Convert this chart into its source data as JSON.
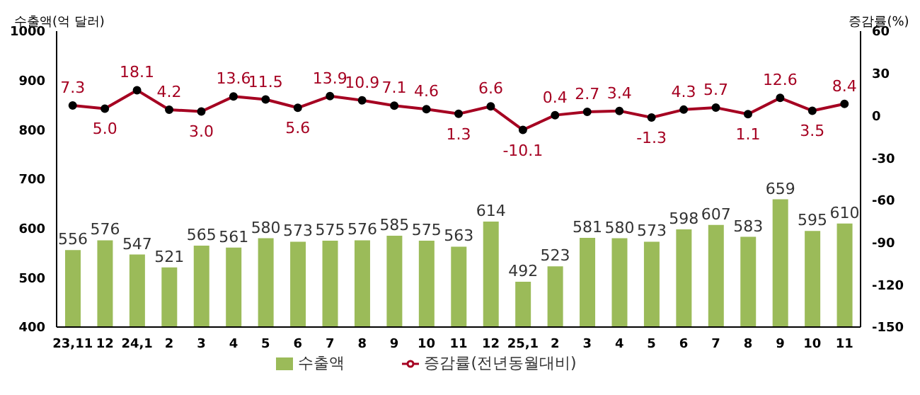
{
  "chart_data": {
    "type": "bar",
    "ylabel": "수출액(억 달러)",
    "y2label": "증감률(%)",
    "categories": [
      "23,11",
      "12",
      "24,1",
      "2",
      "3",
      "4",
      "5",
      "6",
      "7",
      "8",
      "9",
      "10",
      "11",
      "12",
      "25,1",
      "2",
      "3",
      "4",
      "5",
      "6",
      "7",
      "8",
      "9",
      "10",
      "11"
    ],
    "series": [
      {
        "name": "수출액",
        "color": "#9bbb59",
        "values": [
          556,
          576,
          547,
          521,
          565,
          561,
          580,
          573,
          575,
          576,
          585,
          575,
          563,
          614,
          492,
          523,
          581,
          580,
          573,
          598,
          607,
          583,
          659,
          595,
          610
        ]
      },
      {
        "name": "증감률(전년동월대비)",
        "type": "line",
        "axis": "y2",
        "color": "#a50021",
        "marker": "circle",
        "values": [
          7.3,
          5.0,
          18.1,
          4.2,
          3.0,
          13.6,
          11.5,
          5.6,
          13.9,
          10.9,
          7.1,
          4.6,
          1.3,
          6.6,
          -10.1,
          0.4,
          2.7,
          3.4,
          -1.3,
          4.3,
          5.7,
          1.1,
          12.6,
          3.5,
          8.4
        ],
        "value_labels": [
          "7.3",
          "5.0",
          "18.1",
          "4.2",
          "3.0",
          "13.6",
          "11.5",
          "5.6",
          "13.9",
          "10.9",
          "7.1",
          "4.6",
          "1.3",
          "6.6",
          "-10.1",
          "0.4",
          "2.7",
          "3.4",
          "-1.3",
          "4.3",
          "5.7",
          "1.1",
          "12.6",
          "3.5",
          "8.4"
        ]
      }
    ],
    "ylim": [
      400,
      1000
    ],
    "yticks": [
      400,
      500,
      600,
      700,
      800,
      900,
      1000
    ],
    "y2lim": [
      -150,
      60
    ],
    "y2ticks": [
      -150,
      -120,
      -90,
      -60,
      -30,
      0,
      30,
      60
    ],
    "data_labels": true,
    "grid": false,
    "legend": "bottom"
  }
}
